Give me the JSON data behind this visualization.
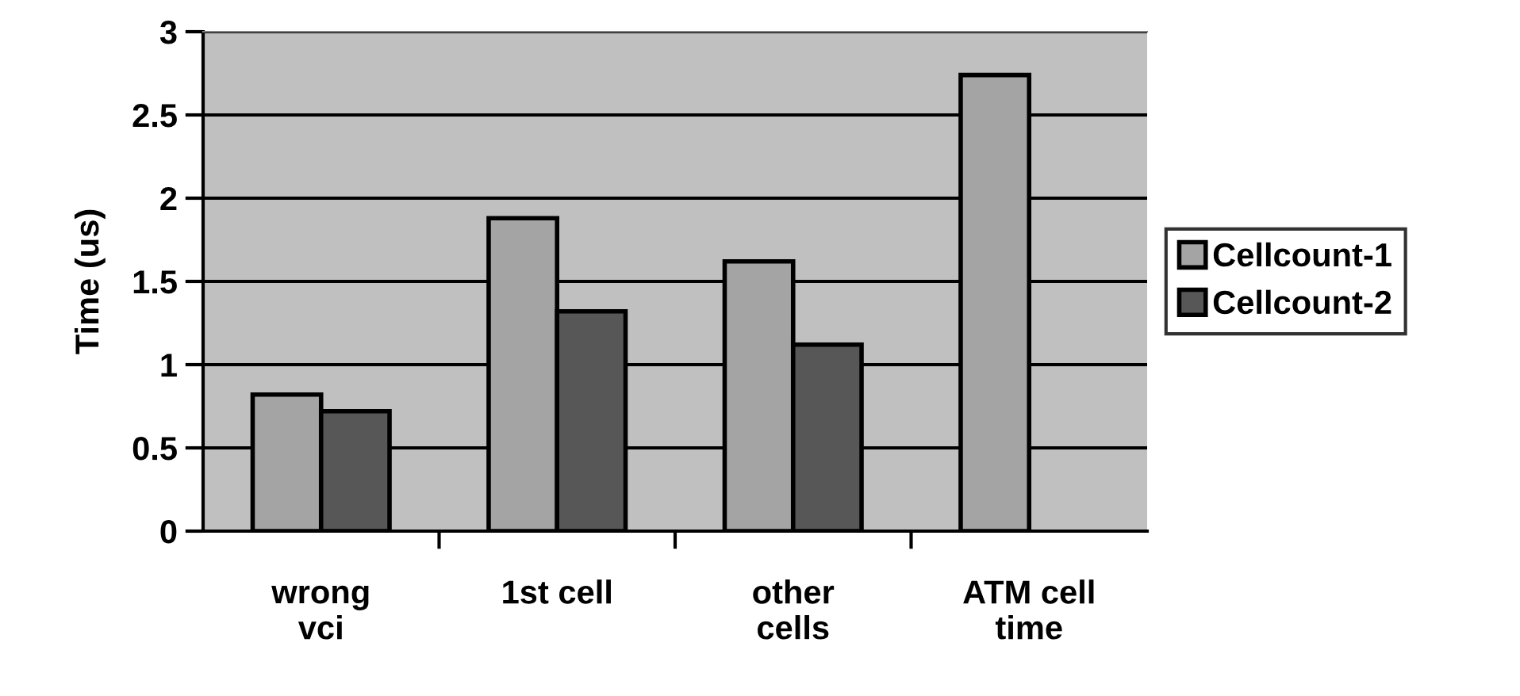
{
  "chart_data": {
    "type": "bar",
    "ylabel": "Time (us)",
    "categories": [
      "wrong\nvci",
      "1st cell",
      "other\ncells",
      "ATM cell\ntime"
    ],
    "series": [
      {
        "name": "Cellcount-1",
        "color": "#a4a4a4",
        "values": [
          0.82,
          1.88,
          1.62,
          2.74
        ]
      },
      {
        "name": "Cellcount-2",
        "color": "#575757",
        "values": [
          0.72,
          1.32,
          1.12,
          null
        ]
      }
    ],
    "ylim": [
      0,
      3
    ],
    "yticks": [
      0,
      {
        "value": 0.5,
        "label": "0.5"
      },
      1,
      {
        "value": 1.5,
        "label": "1.5"
      },
      2,
      {
        "value": 2.5,
        "label": "2.5"
      },
      3
    ],
    "grid": "y",
    "legend": "right"
  }
}
